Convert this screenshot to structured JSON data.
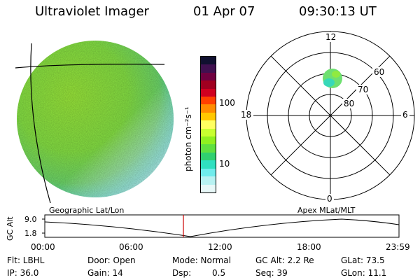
{
  "header": {
    "instrument": "Ultraviolet Imager",
    "date": "01 Apr 07",
    "time": "09:30:13 UT"
  },
  "colorbar": {
    "label": "photon cm⁻²s⁻¹",
    "ticks": [
      "100",
      "10"
    ],
    "colors": [
      "#101030",
      "#401050",
      "#700040",
      "#a00020",
      "#d00020",
      "#ff4000",
      "#ff8c00",
      "#ffc800",
      "#ffff60",
      "#c8ff30",
      "#90f020",
      "#60e040",
      "#30d070",
      "#30e0c0",
      "#70ecec",
      "#b8f2f2",
      "#e8f8f8"
    ]
  },
  "polar": {
    "mlt_labels": [
      "12",
      "18",
      "6",
      "0"
    ],
    "mlat_labels": [
      "60",
      "70",
      "80"
    ]
  },
  "timeline": {
    "ylabel": "GC Alt",
    "left_title": "Geographic Lat/Lon",
    "right_title": "Apex MLat/MLT",
    "y_top": "9.0",
    "y_bottom": "1.8",
    "x_ticks": [
      "00:00",
      "06:00",
      "12:00",
      "18:00",
      "23:59"
    ],
    "marker_color": "#cc0000"
  },
  "status": {
    "flt": "Flt: LBHL",
    "ip": "IP: 36.0",
    "door": "Door: Open",
    "gain": "Gain: 14",
    "mode": "Mode: Normal",
    "dsp_label": "Dsp:",
    "dsp_value": "0.5",
    "gc_alt": "GC Alt: 2.2 Re",
    "seq": "Seq: 39",
    "glat": "GLat: 73.5",
    "glon": "GLon: 11.1"
  }
}
